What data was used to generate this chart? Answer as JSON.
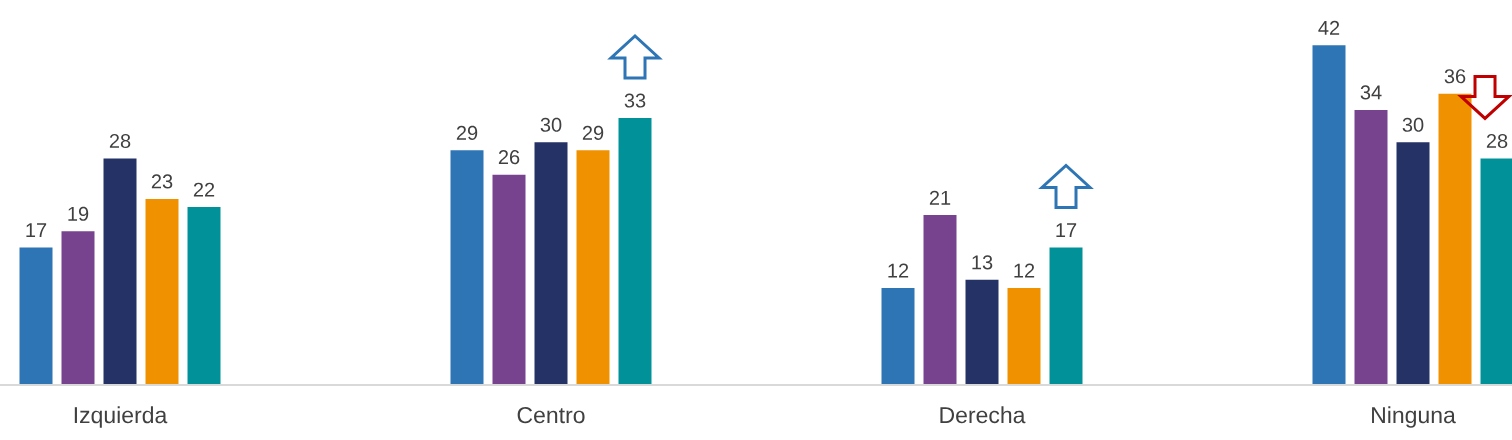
{
  "chart_data": {
    "type": "bar",
    "categories": [
      "Izquierda",
      "Centro",
      "Derecha",
      "Ninguna"
    ],
    "series": [
      {
        "color": "#2e75b6",
        "values": [
          17,
          29,
          12,
          42
        ]
      },
      {
        "color": "#77438f",
        "values": [
          19,
          26,
          21,
          34
        ]
      },
      {
        "color": "#243265",
        "values": [
          28,
          30,
          13,
          30
        ]
      },
      {
        "color": "#f09100",
        "values": [
          23,
          29,
          12,
          36
        ]
      },
      {
        "color": "#009298",
        "values": [
          22,
          33,
          17,
          28
        ]
      }
    ],
    "data_labels": true
  }
}
